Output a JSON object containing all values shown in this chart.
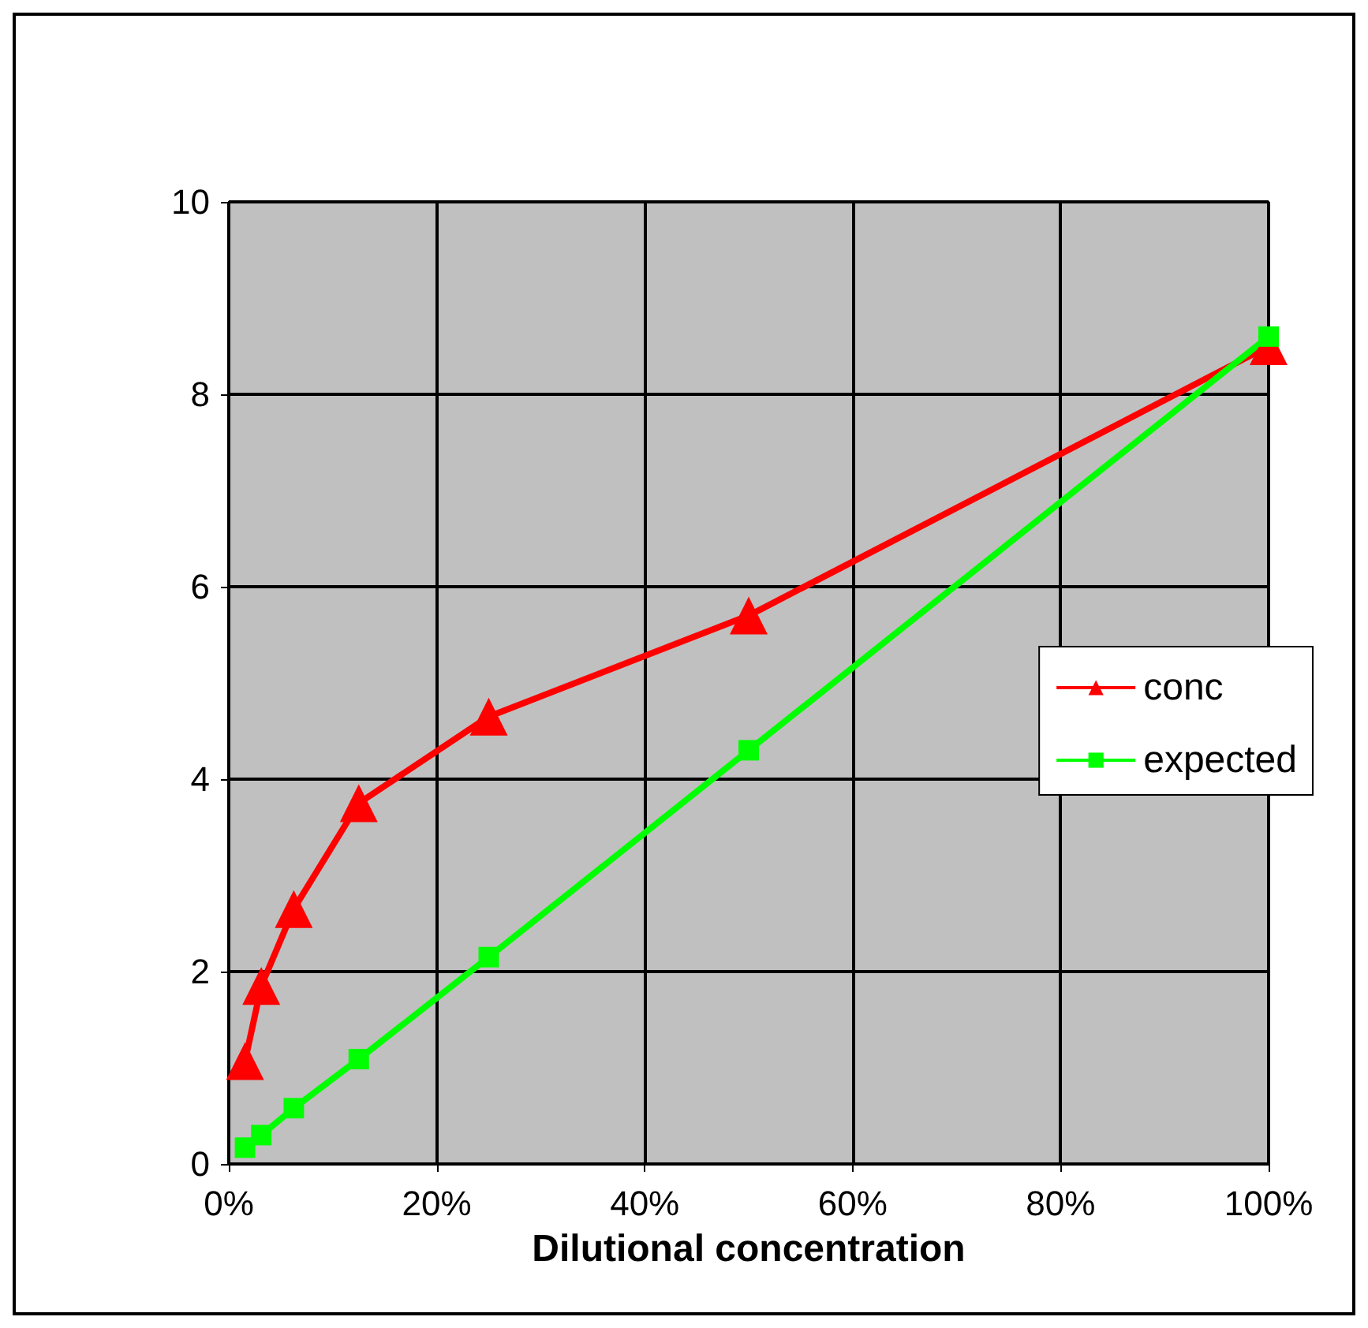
{
  "chart_data": {
    "type": "line",
    "xlabel": "Dilutional concentration",
    "x": [
      1.5625,
      3.125,
      6.25,
      12.5,
      25,
      50,
      100
    ],
    "series": [
      {
        "name": "conc",
        "color": "#ff0000",
        "marker": "triangle",
        "values": [
          1.07,
          1.85,
          2.65,
          3.75,
          4.65,
          5.7,
          8.5
        ]
      },
      {
        "name": "expected",
        "color": "#00ff00",
        "marker": "square",
        "values": [
          0.17,
          0.3,
          0.58,
          1.09,
          2.15,
          4.3,
          8.6
        ]
      }
    ],
    "xlim": [
      0,
      100
    ],
    "xticks": [
      {
        "value": 0,
        "label": "0%"
      },
      {
        "value": 20,
        "label": "20%"
      },
      {
        "value": 40,
        "label": "40%"
      },
      {
        "value": 60,
        "label": "60%"
      },
      {
        "value": 80,
        "label": "80%"
      },
      {
        "value": 100,
        "label": "100%"
      }
    ],
    "ylim": [
      0,
      10
    ],
    "yticks": [
      0,
      2,
      4,
      6,
      8,
      10
    ],
    "grid": true,
    "legend": "right",
    "line_style": "solid"
  }
}
